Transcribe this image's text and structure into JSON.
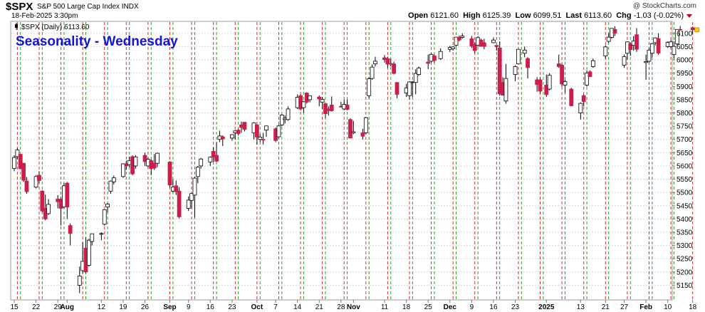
{
  "header": {
    "symbol": "$SPX",
    "description": "S&P 500 Large Cap Index  INDX",
    "date": "18-Feb-2025 3:30pm",
    "brand": "@ StockCharts.com",
    "open_label": "Open",
    "open": "6121.60",
    "high_label": "High",
    "high": "6125.39",
    "low_label": "Low",
    "low": "6099.51",
    "last_label": "Last",
    "last": "6113.60",
    "chg_label": "Chg",
    "chg": "-1.03 (-0.02%)"
  },
  "legend": {
    "text": "$SPX (Daily) 6113.60"
  },
  "chart_data": {
    "type": "candlestick",
    "title": "Seasonality - Wednesday",
    "ylim": [
      5100,
      6140
    ],
    "y_ticks": [
      5150,
      5200,
      5250,
      5300,
      5350,
      5400,
      5450,
      5500,
      5550,
      5600,
      5650,
      5700,
      5750,
      5800,
      5850,
      5900,
      5950,
      6000,
      6050,
      6100
    ],
    "x_tick_labels": [
      "15",
      "22",
      "29",
      "Aug",
      "12",
      "19",
      "26",
      "Sep",
      "9",
      "16",
      "23",
      "Oct",
      "7",
      "14",
      "21",
      "28",
      "Nov",
      "11",
      "18",
      "25",
      "Dec",
      "9",
      "16",
      "23",
      "2025",
      "13",
      "21",
      "27",
      "Feb",
      "10",
      "18"
    ],
    "grid": true,
    "colors": {
      "up": "#ffffff",
      "down": "#cc1e4a",
      "outline": "#000000",
      "wednesday_line": "#2e9a2e",
      "other_line": "#d42a2a",
      "title": "#1515d8",
      "last_marker": "#ffcc00"
    },
    "note_lines": "Vertical green dashed lines mark Wednesdays; red dashed lines mark other weekly sessions.",
    "candles": [
      [
        "2024-07-15",
        5590,
        5640,
        5580,
        5632
      ],
      [
        "2024-07-16",
        5635,
        5667,
        5625,
        5660
      ],
      [
        "2024-07-17",
        5644,
        5645,
        5588,
        5590
      ],
      [
        "2024-07-18",
        5610,
        5612,
        5540,
        5546
      ],
      [
        "2024-07-19",
        5543,
        5558,
        5495,
        5503
      ],
      [
        "2024-07-22",
        5520,
        5565,
        5515,
        5560
      ],
      [
        "2024-07-23",
        5565,
        5580,
        5535,
        5545
      ],
      [
        "2024-07-24",
        5505,
        5508,
        5425,
        5430
      ],
      [
        "2024-07-25",
        5440,
        5492,
        5395,
        5400
      ],
      [
        "2024-07-26",
        5420,
        5475,
        5415,
        5455
      ],
      [
        "2024-07-29",
        5475,
        5490,
        5440,
        5465
      ],
      [
        "2024-07-30",
        5475,
        5480,
        5375,
        5440
      ],
      [
        "2024-07-31",
        5445,
        5535,
        5440,
        5525
      ],
      [
        "2024-08-01",
        5535,
        5540,
        5400,
        5445
      ],
      [
        "2024-08-02",
        5375,
        5383,
        5300,
        5345
      ],
      [
        "2024-08-05",
        5150,
        5220,
        5120,
        5185
      ],
      [
        "2024-08-06",
        5205,
        5312,
        5195,
        5240
      ],
      [
        "2024-08-07",
        5290,
        5330,
        5195,
        5200
      ],
      [
        "2024-08-08",
        5225,
        5325,
        5220,
        5320
      ],
      [
        "2024-08-09",
        5315,
        5345,
        5300,
        5344
      ],
      [
        "2024-08-12",
        5345,
        5350,
        5320,
        5345
      ],
      [
        "2024-08-13",
        5380,
        5435,
        5375,
        5435
      ],
      [
        "2024-08-14",
        5445,
        5460,
        5425,
        5456
      ],
      [
        "2024-08-15",
        5505,
        5545,
        5495,
        5543
      ],
      [
        "2024-08-16",
        5540,
        5564,
        5530,
        5555
      ],
      [
        "2024-08-19",
        5560,
        5610,
        5555,
        5608
      ],
      [
        "2024-08-20",
        5608,
        5620,
        5585,
        5600
      ],
      [
        "2024-08-21",
        5605,
        5635,
        5595,
        5620
      ],
      [
        "2024-08-22",
        5635,
        5640,
        5565,
        5570
      ],
      [
        "2024-08-23",
        5600,
        5640,
        5590,
        5634
      ],
      [
        "2024-08-26",
        5640,
        5650,
        5600,
        5616
      ],
      [
        "2024-08-27",
        5600,
        5630,
        5595,
        5625
      ],
      [
        "2024-08-28",
        5620,
        5625,
        5565,
        5590
      ],
      [
        "2024-08-29",
        5610,
        5645,
        5585,
        5592
      ],
      [
        "2024-08-30",
        5610,
        5650,
        5595,
        5648
      ],
      [
        "2024-09-03",
        5615,
        5618,
        5520,
        5528
      ],
      [
        "2024-09-04",
        5505,
        5550,
        5500,
        5520
      ],
      [
        "2024-09-05",
        5525,
        5545,
        5490,
        5503
      ],
      [
        "2024-09-06",
        5505,
        5520,
        5402,
        5408
      ],
      [
        "2024-09-09",
        5440,
        5485,
        5430,
        5471
      ],
      [
        "2024-09-10",
        5470,
        5497,
        5440,
        5496
      ],
      [
        "2024-09-11",
        5490,
        5560,
        5405,
        5554
      ],
      [
        "2024-09-12",
        5560,
        5600,
        5535,
        5595
      ],
      [
        "2024-09-13",
        5600,
        5630,
        5590,
        5626
      ],
      [
        "2024-09-16",
        5615,
        5636,
        5600,
        5633
      ],
      [
        "2024-09-17",
        5655,
        5670,
        5615,
        5634
      ],
      [
        "2024-09-18",
        5640,
        5690,
        5615,
        5618
      ],
      [
        "2024-09-19",
        5700,
        5733,
        5690,
        5713
      ],
      [
        "2024-09-20",
        5710,
        5715,
        5675,
        5702
      ],
      [
        "2024-09-23",
        5705,
        5720,
        5695,
        5718
      ],
      [
        "2024-09-24",
        5725,
        5735,
        5700,
        5732
      ],
      [
        "2024-09-25",
        5735,
        5740,
        5715,
        5722
      ],
      [
        "2024-09-26",
        5755,
        5767,
        5725,
        5745
      ],
      [
        "2024-09-27",
        5765,
        5765,
        5730,
        5738
      ],
      [
        "2024-09-30",
        5725,
        5765,
        5700,
        5762
      ],
      [
        "2024-10-01",
        5755,
        5757,
        5680,
        5709
      ],
      [
        "2024-10-02",
        5700,
        5720,
        5690,
        5709
      ],
      [
        "2024-10-03",
        5700,
        5725,
        5680,
        5699
      ],
      [
        "2024-10-04",
        5735,
        5752,
        5710,
        5751
      ],
      [
        "2024-10-07",
        5740,
        5745,
        5690,
        5696
      ],
      [
        "2024-10-08",
        5710,
        5755,
        5705,
        5751
      ],
      [
        "2024-10-09",
        5755,
        5795,
        5750,
        5792
      ],
      [
        "2024-10-10",
        5775,
        5790,
        5760,
        5780
      ],
      [
        "2024-10-11",
        5775,
        5825,
        5770,
        5815
      ],
      [
        "2024-10-14",
        5820,
        5870,
        5815,
        5859
      ],
      [
        "2024-10-15",
        5865,
        5870,
        5810,
        5815
      ],
      [
        "2024-10-16",
        5820,
        5845,
        5800,
        5842
      ],
      [
        "2024-10-17",
        5875,
        5878,
        5835,
        5841
      ],
      [
        "2024-10-18",
        5850,
        5865,
        5840,
        5864
      ],
      [
        "2024-10-21",
        5860,
        5866,
        5825,
        5853
      ],
      [
        "2024-10-22",
        5840,
        5860,
        5815,
        5851
      ],
      [
        "2024-10-23",
        5835,
        5835,
        5780,
        5797
      ],
      [
        "2024-10-24",
        5815,
        5825,
        5790,
        5809
      ],
      [
        "2024-10-25",
        5830,
        5862,
        5805,
        5808
      ],
      [
        "2024-10-28",
        5825,
        5842,
        5820,
        5823
      ],
      [
        "2024-10-29",
        5815,
        5850,
        5810,
        5832
      ],
      [
        "2024-10-30",
        5830,
        5850,
        5810,
        5813
      ],
      [
        "2024-10-31",
        5775,
        5780,
        5705,
        5705
      ],
      [
        "2024-11-01",
        5725,
        5770,
        5720,
        5729
      ],
      [
        "2024-11-04",
        5725,
        5740,
        5700,
        5712
      ],
      [
        "2024-11-05",
        5725,
        5785,
        5720,
        5782
      ],
      [
        "2024-11-06",
        5865,
        5935,
        5855,
        5929
      ],
      [
        "2024-11-07",
        5930,
        5983,
        5925,
        5973
      ],
      [
        "2024-11-08",
        5985,
        6012,
        5975,
        5995
      ],
      [
        "2024-11-11",
        6008,
        6018,
        5990,
        6001
      ],
      [
        "2024-11-12",
        6005,
        6012,
        5970,
        5984
      ],
      [
        "2024-11-13",
        5986,
        6005,
        5975,
        5985
      ],
      [
        "2024-11-14",
        5985,
        5993,
        5945,
        5949
      ],
      [
        "2024-11-15",
        5915,
        5915,
        5855,
        5870
      ],
      [
        "2024-11-18",
        5875,
        5910,
        5860,
        5894
      ],
      [
        "2024-11-19",
        5865,
        5920,
        5850,
        5917
      ],
      [
        "2024-11-20",
        5915,
        5920,
        5860,
        5917
      ],
      [
        "2024-11-21",
        5915,
        5965,
        5870,
        5949
      ],
      [
        "2024-11-22",
        5945,
        5975,
        5940,
        5969
      ],
      [
        "2024-11-25",
        5992,
        6020,
        5965,
        5987
      ],
      [
        "2024-11-26",
        5995,
        6025,
        5990,
        6021
      ],
      [
        "2024-11-27",
        6015,
        6020,
        5990,
        5998
      ],
      [
        "2024-11-29",
        6005,
        6044,
        6000,
        6032
      ],
      [
        "2024-12-02",
        6040,
        6053,
        6030,
        6047
      ],
      [
        "2024-12-03",
        6042,
        6052,
        6035,
        6049
      ],
      [
        "2024-12-04",
        6055,
        6087,
        6050,
        6086
      ],
      [
        "2024-12-05",
        6085,
        6092,
        6070,
        6075
      ],
      [
        "2024-12-06",
        6085,
        6100,
        6080,
        6090
      ],
      [
        "2024-12-09",
        6080,
        6090,
        6045,
        6052
      ],
      [
        "2024-12-10",
        6058,
        6065,
        6025,
        6035
      ],
      [
        "2024-12-11",
        6055,
        6090,
        6050,
        6084
      ],
      [
        "2024-12-12",
        6075,
        6080,
        6050,
        6051
      ],
      [
        "2024-12-13",
        6065,
        6080,
        6040,
        6051
      ],
      [
        "2024-12-16",
        6065,
        6085,
        6063,
        6075
      ],
      [
        "2024-12-17",
        6055,
        6055,
        6035,
        6050
      ],
      [
        "2024-12-18",
        6045,
        6070,
        5865,
        5872
      ],
      [
        "2024-12-19",
        5915,
        5935,
        5865,
        5867
      ],
      [
        "2024-12-20",
        5845,
        5985,
        5835,
        5930
      ],
      [
        "2024-12-23",
        5945,
        5980,
        5920,
        5975
      ],
      [
        "2024-12-24",
        5985,
        6040,
        5985,
        6040
      ],
      [
        "2024-12-26",
        6025,
        6050,
        6010,
        6037
      ],
      [
        "2024-12-27",
        6005,
        6010,
        5930,
        5971
      ],
      [
        "2024-12-30",
        5925,
        5935,
        5880,
        5907
      ],
      [
        "2024-12-31",
        5925,
        5935,
        5875,
        5882
      ],
      [
        "2025-01-02",
        5905,
        5945,
        5860,
        5869
      ],
      [
        "2025-01-03",
        5890,
        5950,
        5885,
        5942
      ],
      [
        "2025-01-06",
        5985,
        6020,
        5970,
        5975
      ],
      [
        "2025-01-07",
        5980,
        5985,
        5900,
        5909
      ],
      [
        "2025-01-08",
        5905,
        5925,
        5875,
        5918
      ],
      [
        "2025-01-10",
        5890,
        5895,
        5825,
        5827
      ],
      [
        "2025-01-13",
        5800,
        5840,
        5775,
        5836
      ],
      [
        "2025-01-14",
        5865,
        5870,
        5825,
        5843
      ],
      [
        "2025-01-15",
        5905,
        5960,
        5900,
        5950
      ],
      [
        "2025-01-16",
        5955,
        5960,
        5935,
        5937
      ],
      [
        "2025-01-17",
        5975,
        6005,
        5970,
        5997
      ],
      [
        "2025-01-21",
        6015,
        6055,
        6005,
        6049
      ],
      [
        "2025-01-22",
        6070,
        6100,
        6065,
        6086
      ],
      [
        "2025-01-23",
        6085,
        6120,
        6080,
        6119
      ],
      [
        "2025-01-24",
        6115,
        6127,
        6090,
        6101
      ],
      [
        "2025-01-27",
        5980,
        6020,
        5970,
        6012
      ],
      [
        "2025-01-28",
        6025,
        6070,
        6000,
        6068
      ],
      [
        "2025-01-29",
        6060,
        6065,
        6015,
        6039
      ],
      [
        "2025-01-30",
        6055,
        6090,
        6035,
        6071
      ],
      [
        "2025-01-31",
        6095,
        6120,
        6030,
        6040
      ],
      [
        "2025-02-03",
        5990,
        6020,
        5925,
        5994
      ],
      [
        "2025-02-04",
        5995,
        6045,
        5990,
        6037
      ],
      [
        "2025-02-05",
        6025,
        6060,
        6010,
        6061
      ],
      [
        "2025-02-06",
        6065,
        6085,
        6055,
        6083
      ],
      [
        "2025-02-07",
        6080,
        6100,
        6020,
        6026
      ],
      [
        "2025-02-10",
        6050,
        6070,
        6045,
        6066
      ],
      [
        "2025-02-11",
        6050,
        6075,
        6045,
        6068
      ],
      [
        "2025-02-12",
        6020,
        6070,
        6005,
        6051
      ],
      [
        "2025-02-13",
        6060,
        6115,
        6055,
        6115
      ],
      [
        "2025-02-14",
        6115,
        6128,
        6110,
        6114
      ],
      [
        "2025-02-18",
        6121.6,
        6125.39,
        6099.51,
        6113.6
      ]
    ]
  }
}
